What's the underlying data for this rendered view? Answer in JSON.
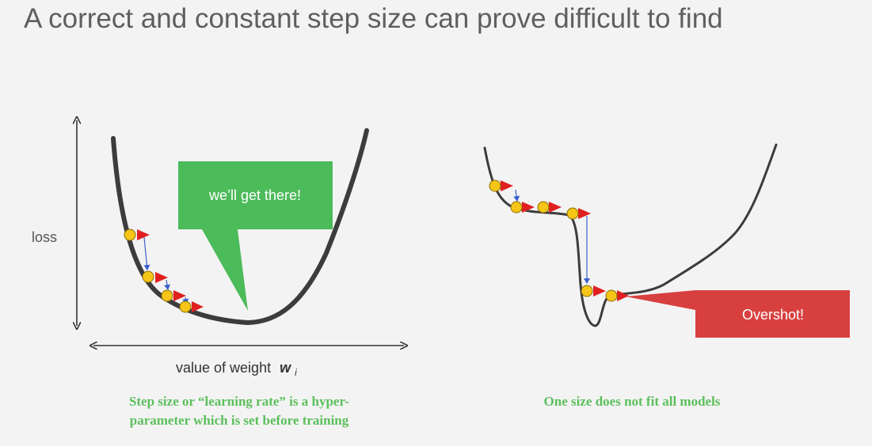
{
  "title": "A correct and constant step size can prove difficult to find",
  "left_panel": {
    "y_axis_label": "loss",
    "x_axis_label": "value of weight",
    "x_axis_symbol": "w",
    "x_axis_subscript": "i",
    "callout_text": "we’ll get there!",
    "caption_line1": "Step size or “learning rate” is a hyper-",
    "caption_line2": "parameter which is set before training"
  },
  "right_panel": {
    "callout_text": "Overshot!",
    "caption": "One size does not fit all models"
  },
  "colors": {
    "curve": "#3c3c3c",
    "point": "#f5c518",
    "direction_arrow": "#e02020",
    "step_arrow": "#3a5fcd",
    "good_callout": "#4cbb5a",
    "bad_callout": "#d84040",
    "caption": "#5cbf5c"
  }
}
